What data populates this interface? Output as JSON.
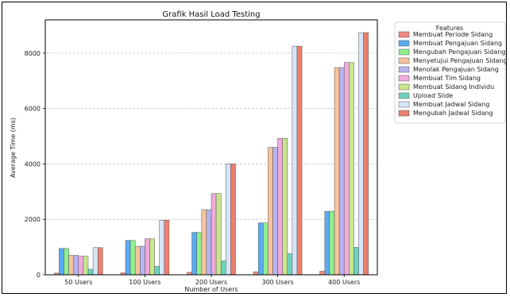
{
  "chart_data": {
    "type": "bar",
    "title": "Grafik Hasil Load Testing",
    "xlabel": "Number of Users",
    "ylabel": "Average Time (ms)",
    "categories": [
      "50 Users",
      "100 Users",
      "200 Users",
      "300 Users",
      "400 Users"
    ],
    "ylim": [
      0,
      9200
    ],
    "yticks": [
      0,
      2000,
      4000,
      6000,
      8000
    ],
    "grid": "horizontal",
    "legend": {
      "title": "Features",
      "placement": "right"
    },
    "series": [
      {
        "name": "Membuat Periode Sidang",
        "color": "#f08b80",
        "values": [
          60,
          70,
          90,
          110,
          130
        ]
      },
      {
        "name": "Membuat Pengajuan Sidang",
        "color": "#5aaaf2",
        "values": [
          950,
          1240,
          1530,
          1870,
          2290
        ]
      },
      {
        "name": "Mengubah Pengajuan Sidang",
        "color": "#8ef08e",
        "values": [
          950,
          1240,
          1530,
          1870,
          2290
        ]
      },
      {
        "name": "Menyetujui Pengajuan Sidang",
        "color": "#f7c39c",
        "values": [
          700,
          1030,
          2350,
          4600,
          7480
        ]
      },
      {
        "name": "Menolak Pengajuan Sidang",
        "color": "#b6b4ee",
        "values": [
          700,
          1030,
          2350,
          4600,
          7480
        ]
      },
      {
        "name": "Membuat Tim Sidang",
        "color": "#f0aadc",
        "values": [
          670,
          1300,
          2930,
          4920,
          7660
        ]
      },
      {
        "name": "Membuat Sidang Individu",
        "color": "#c8e68c",
        "values": [
          670,
          1300,
          2930,
          4920,
          7660
        ]
      },
      {
        "name": "Upload Slide",
        "color": "#6ed3bd",
        "values": [
          200,
          310,
          500,
          760,
          990
        ]
      },
      {
        "name": "Membuat Jadwal Sidang",
        "color": "#d6e6f8",
        "values": [
          980,
          1970,
          4000,
          8250,
          8740
        ]
      },
      {
        "name": "Mengubah Jadwal Sidang",
        "color": "#ec7f6e",
        "values": [
          980,
          1970,
          4000,
          8250,
          8740
        ]
      }
    ]
  }
}
